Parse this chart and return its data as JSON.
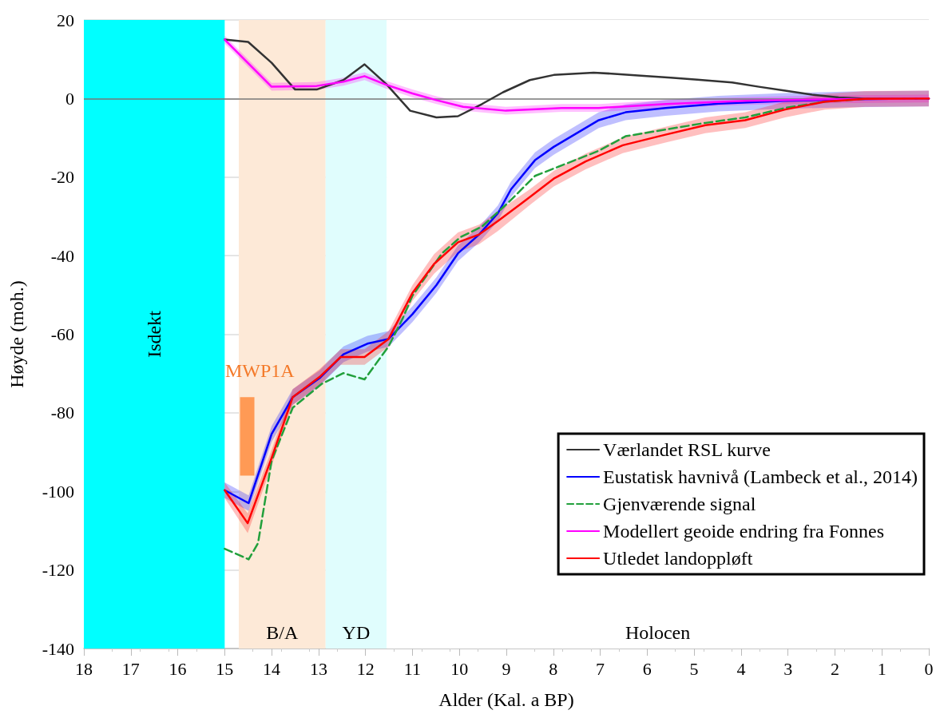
{
  "chart_data": {
    "type": "line",
    "xlabel": "Alder (Kal. a BP)",
    "ylabel": "Høyde (moh.)",
    "xlim": [
      18,
      0
    ],
    "xticks": [
      18,
      17,
      16,
      15,
      14,
      13,
      12,
      11,
      10,
      9,
      8,
      7,
      6,
      5,
      4,
      3,
      2,
      1,
      0
    ],
    "ylim": [
      -140,
      20
    ],
    "yticks": [
      -140,
      -120,
      -100,
      -80,
      -60,
      -40,
      -20,
      0,
      20
    ],
    "grid": "y",
    "legend": "bottom right",
    "marker": "none",
    "series": [
      {
        "name": "Værlandet RSL kurve",
        "color": "#333333",
        "line_style": "solid",
        "x": [
          15,
          14.5,
          14,
          13.5,
          13.04,
          12.47,
          12.02,
          11.56,
          11.05,
          10.49,
          10.03,
          9.52,
          9.07,
          8.5,
          7.99,
          7.14,
          6.57,
          6.01,
          5.5,
          4.93,
          4.19,
          3.62,
          3.06,
          2.49,
          1.92,
          1.35,
          0
        ],
        "values": [
          15,
          14.4,
          9.1,
          2.3,
          2.3,
          4.7,
          8.7,
          3.7,
          -3.1,
          -4.8,
          -4.5,
          -1.4,
          1.6,
          4.7,
          6,
          6.6,
          6.2,
          5.7,
          5.3,
          4.8,
          4.1,
          3,
          2,
          1,
          0.3,
          0,
          0
        ]
      },
      {
        "name": "Eustatisk havnivå (Lambeck et al., 2014)",
        "color": "#0000ff",
        "line_style": "solid",
        "x": [
          15,
          14.49,
          14,
          13.55,
          12.98,
          12.47,
          11.96,
          11.51,
          11,
          10.49,
          10.03,
          9.58,
          9.18,
          8.9,
          8.39,
          7.99,
          7.03,
          6.46,
          5.61,
          4.48,
          3.06,
          1.64,
          0
        ],
        "values": [
          -99.7,
          -103,
          -85.4,
          -76,
          -71.2,
          -65.1,
          -62.4,
          -61.2,
          -54.9,
          -47.5,
          -39.4,
          -34.6,
          -29.2,
          -23.1,
          -15.7,
          -12.3,
          -5.5,
          -3.5,
          -2.4,
          -1.3,
          -0.6,
          -0.2,
          0
        ],
        "lower": [
          -101.7,
          -105,
          -87.4,
          -78,
          -73.2,
          -67.1,
          -64.4,
          -63.2,
          -56.9,
          -49.5,
          -41.4,
          -36.6,
          -31.2,
          -25.1,
          -17.7,
          -14.3,
          -7.5,
          -5.5,
          -4.4,
          -3.3,
          -2.6,
          -2.2,
          -2
        ],
        "upper": [
          -97.7,
          -101,
          -83.4,
          -74,
          -69.2,
          -63.1,
          -60.4,
          -59.2,
          -52.9,
          -45.5,
          -37.4,
          -32.6,
          -27.2,
          -21.1,
          -13.7,
          -10.3,
          -3.5,
          -1.5,
          -0.4,
          0.7,
          1.4,
          1.8,
          2
        ]
      },
      {
        "name": "Gjenværende signal",
        "color": "#22a03c",
        "line_style": "dashed",
        "x": [
          15,
          14.49,
          14.29,
          14,
          13.55,
          12.93,
          12.47,
          12.02,
          11.51,
          11.22,
          11,
          10.37,
          9.98,
          9.52,
          8.96,
          8.39,
          7.88,
          7.03,
          6.46,
          5.61,
          4.76,
          3.91,
          3.06,
          2.21,
          1.36,
          0
        ],
        "values": [
          -114.6,
          -117.3,
          -113.2,
          -92.2,
          -78.7,
          -72.6,
          -69.9,
          -71.5,
          -63.1,
          -56.3,
          -50.2,
          -39.4,
          -35.3,
          -32.6,
          -26.5,
          -19.7,
          -17.3,
          -13.3,
          -9.6,
          -7.9,
          -6.2,
          -4.8,
          -2.4,
          -0.8,
          -0.1,
          0
        ]
      },
      {
        "name": "Modellert geoide endring fra Fonnes",
        "color": "#ff00ff",
        "line_style": "solid",
        "x": [
          15,
          14,
          13.04,
          12.47,
          12.02,
          11.56,
          11,
          10.49,
          9.92,
          9.01,
          7.82,
          7.03,
          5.6,
          3.9,
          2.2,
          0
        ],
        "values": [
          15,
          3,
          3.2,
          4.3,
          5.7,
          3.5,
          1.3,
          -0.4,
          -2.1,
          -3.1,
          -2.4,
          -2.4,
          -1.4,
          -0.6,
          -0.2,
          0
        ],
        "lower": [
          14,
          2,
          2.2,
          3.3,
          4.7,
          2.5,
          0.3,
          -1.4,
          -3.1,
          -4.1,
          -3.4,
          -3.4,
          -2.4,
          -1.6,
          -1.2,
          -1
        ],
        "upper": [
          16,
          4,
          4.2,
          5.3,
          6.7,
          4.5,
          2.3,
          0.6,
          -1.1,
          -2.1,
          -1.4,
          -1.4,
          -0.4,
          0.4,
          0.8,
          1
        ]
      },
      {
        "name": "Utledet landoppløft",
        "color": "#ff0000",
        "line_style": "solid",
        "x": [
          15,
          14.51,
          14,
          13.55,
          12.98,
          12.53,
          12.02,
          11.51,
          11,
          10.54,
          10.03,
          9.58,
          9.18,
          8.5,
          7.99,
          7.31,
          6.52,
          5.61,
          4.76,
          3.91,
          3.06,
          2.21,
          1.36,
          0
        ],
        "values": [
          -99.7,
          -108.1,
          -91.5,
          -76,
          -70.9,
          -65.8,
          -65.8,
          -61.2,
          -49.5,
          -42.1,
          -36.6,
          -34.6,
          -31.2,
          -25.1,
          -20.4,
          -16,
          -11.9,
          -9.2,
          -6.8,
          -5.5,
          -2.8,
          -0.8,
          -0.1,
          0
        ],
        "lower": [
          -101.7,
          -110.6,
          -93.5,
          -78,
          -72.9,
          -67.8,
          -67.8,
          -63.2,
          -51.5,
          -44.6,
          -39.1,
          -37.1,
          -33.7,
          -27.1,
          -22.4,
          -18,
          -13.9,
          -11.2,
          -8.8,
          -7.5,
          -4.8,
          -2.8,
          -2.1,
          -2
        ],
        "upper": [
          -97.7,
          -105.6,
          -89.5,
          -74,
          -68.9,
          -63.8,
          -63.8,
          -59.2,
          -47.5,
          -39.6,
          -34.1,
          -32.1,
          -28.7,
          -23.1,
          -18.4,
          -14,
          -9.9,
          -7.2,
          -4.8,
          -3.5,
          -0.8,
          1.2,
          1.9,
          2
        ]
      },
      {
        "type": "bar",
        "color": "#ff9a55",
        "x": [
          14.52
        ],
        "base": [
          -96
        ],
        "values": [
          20
        ]
      }
    ],
    "bands": [
      {
        "axis": "x",
        "from": 18,
        "to": 15,
        "label": "Isdekt",
        "color": "#00ffff"
      },
      {
        "axis": "x",
        "from": 14.7,
        "to": 12.85,
        "label": "B/A",
        "color": "#fde9d7"
      },
      {
        "axis": "x",
        "from": 12.85,
        "to": 11.55,
        "label": "YD",
        "color": "#e0fdfd"
      },
      {
        "axis": "x",
        "from": 11.55,
        "to": 0,
        "label": "Holocen",
        "color": "#ffffff"
      }
    ],
    "ref_lines": [
      {
        "axis": "y",
        "value": 0,
        "color": "#777777"
      }
    ],
    "annotations": [
      "MWP1A"
    ]
  }
}
